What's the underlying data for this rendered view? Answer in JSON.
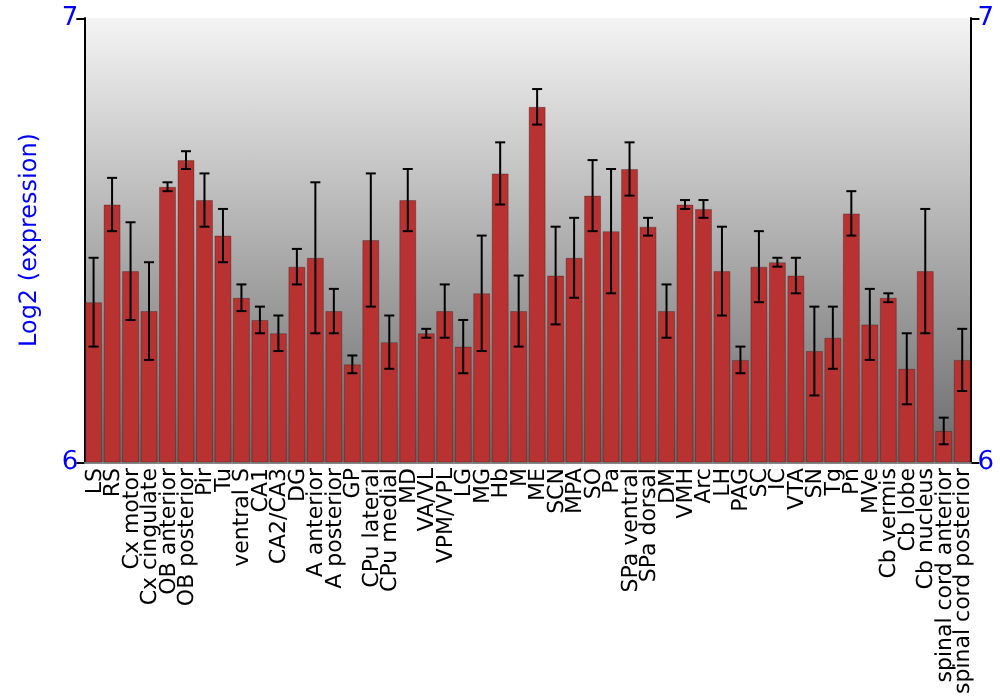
{
  "chart_data": {
    "type": "bar",
    "ylabel": "Log2 (expression)",
    "categories": [
      "LS",
      "RS",
      "Cx motor",
      "Cx cingulate",
      "OB anterior",
      "OB posterior",
      "Pir",
      "Tu",
      "ventral S",
      "CA1",
      "CA2/CA3",
      "DG",
      "A anterior",
      "A posterior",
      "GP",
      "CPu lateral",
      "CPu medial",
      "MD",
      "VA/VL",
      "VPM/VPL",
      "LG",
      "MG",
      "Hb",
      "M",
      "ME",
      "SCN",
      "MPA",
      "SO",
      "Pa",
      "SPa ventral",
      "SPa dorsal",
      "DM",
      "VMH",
      "Arc",
      "LH",
      "PAG",
      "SC",
      "IC",
      "VTA",
      "SN",
      "Tg",
      "Pn",
      "MVe",
      "Cb vermis",
      "Cb lobe",
      "Cb nucleus",
      "spinal cord anterior",
      "spinal cord posterior"
    ],
    "values": [
      6.36,
      6.58,
      6.43,
      6.34,
      6.62,
      6.68,
      6.59,
      6.51,
      6.37,
      6.32,
      6.29,
      6.44,
      6.46,
      6.34,
      6.22,
      6.5,
      6.27,
      6.59,
      6.29,
      6.34,
      6.26,
      6.38,
      6.65,
      6.34,
      6.8,
      6.42,
      6.46,
      6.6,
      6.52,
      6.66,
      6.53,
      6.34,
      6.58,
      6.57,
      6.43,
      6.23,
      6.44,
      6.45,
      6.42,
      6.25,
      6.28,
      6.56,
      6.31,
      6.37,
      6.21,
      6.43,
      6.07,
      6.23
    ],
    "errors": [
      0.1,
      0.06,
      0.11,
      0.11,
      0.01,
      0.02,
      0.06,
      0.06,
      0.03,
      0.03,
      0.04,
      0.04,
      0.17,
      0.05,
      0.02,
      0.15,
      0.06,
      0.07,
      0.01,
      0.06,
      0.06,
      0.13,
      0.07,
      0.08,
      0.04,
      0.11,
      0.09,
      0.08,
      0.14,
      0.06,
      0.02,
      0.06,
      0.01,
      0.02,
      0.1,
      0.03,
      0.08,
      0.01,
      0.04,
      0.1,
      0.07,
      0.05,
      0.08,
      0.01,
      0.08,
      0.14,
      0.03,
      0.07
    ],
    "color": "#b83232",
    "ylim": [
      6,
      7
    ],
    "yticks": [
      6,
      7
    ],
    "y2lim": [
      6,
      7
    ],
    "y2ticks": [
      6,
      7
    ],
    "grid": false
  }
}
